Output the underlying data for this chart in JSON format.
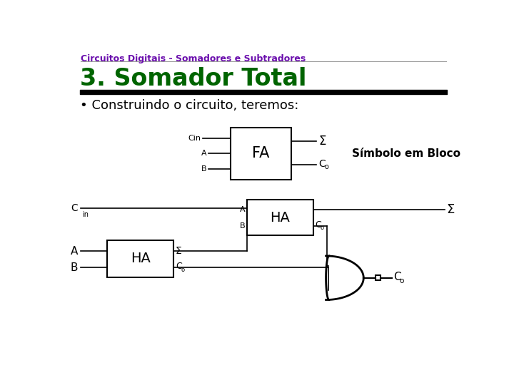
{
  "title_top": "Circuitos Digitais - Somadores e Subtradores",
  "title_main": "3. Somador Total",
  "bullet_text": "Construindo o circuito, teremos:",
  "symbol_label": "Símbolo em Bloco",
  "bg_color": "#ffffff",
  "title_color": "#6a0dad",
  "main_title_color": "#006400",
  "text_color": "#000000",
  "box_color": "#000000",
  "line_color": "#000000"
}
